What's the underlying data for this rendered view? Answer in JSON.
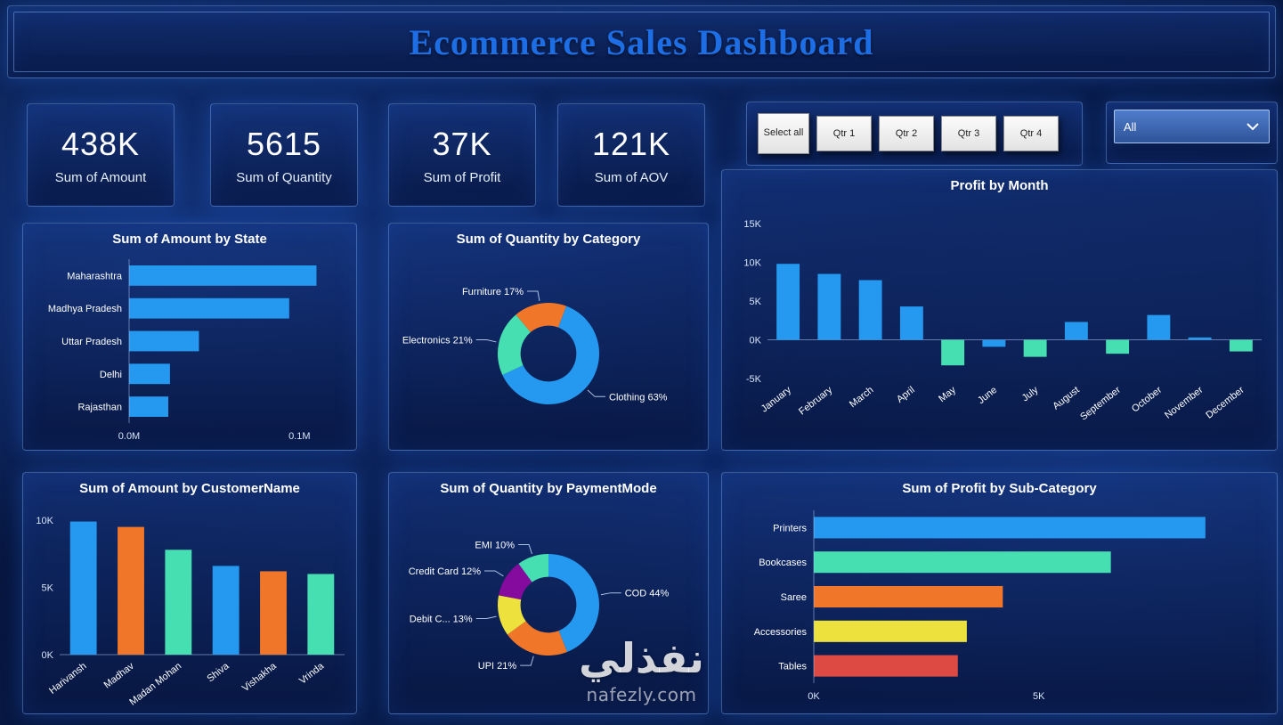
{
  "title": "Ecommerce Sales Dashboard",
  "kpis": [
    {
      "value": "438K",
      "label": "Sum of Amount"
    },
    {
      "value": "5615",
      "label": "Sum of Quantity"
    },
    {
      "value": "37K",
      "label": "Sum of Profit"
    },
    {
      "value": "121K",
      "label": "Sum of AOV"
    }
  ],
  "filters": {
    "quarter_buttons": [
      "Select all",
      "Qtr 1",
      "Qtr 2",
      "Qtr 3",
      "Qtr 4"
    ],
    "dropdown_value": "All"
  },
  "watermark": {
    "arabic": "نفذلي",
    "domain": "nafezly.com"
  },
  "colors": {
    "blue": "#2499ef",
    "orange": "#f0762a",
    "teal": "#46dfb2",
    "yellow": "#ede23d",
    "purple": "#850b9e",
    "red": "#dd4a43",
    "title_blue": "#1d6de4",
    "background": "#081c48"
  },
  "chart_data": [
    {
      "id": "amount_by_state",
      "type": "bar",
      "orientation": "horizontal",
      "title": "Sum of Amount by State",
      "categories": [
        "Maharashtra",
        "Madhya Pradesh",
        "Uttar Pradesh",
        "Delhi",
        "Rajasthan"
      ],
      "values": [
        0.11,
        0.094,
        0.041,
        0.024,
        0.023
      ],
      "unit": "M",
      "xmax": 0.115,
      "xticks": [
        {
          "value": 0.0,
          "label": "0.0M"
        },
        {
          "value": 0.1,
          "label": "0.1M"
        }
      ],
      "bar_color": "#2499ef",
      "legend": "off",
      "grid": "off"
    },
    {
      "id": "quantity_by_category",
      "type": "pie",
      "title": "Sum of Quantity by Category",
      "start_angle": -40,
      "inner_ratio": 0.55,
      "slices": [
        {
          "name": "Furniture",
          "pct": 17,
          "label": "Furniture 17%",
          "value": 17,
          "color": "#f0762a"
        },
        {
          "name": "Clothing",
          "pct": 63,
          "label": "Clothing 63%",
          "value": 63,
          "color": "#2499ef"
        },
        {
          "name": "Electronics",
          "pct": 21,
          "label": "Electronics 21%",
          "value": 21,
          "color": "#46dfb2"
        }
      ]
    },
    {
      "id": "profit_by_month",
      "type": "bar",
      "orientation": "vertical",
      "title": "Profit by Month",
      "categories": [
        "January",
        "February",
        "March",
        "April",
        "May",
        "June",
        "July",
        "August",
        "September",
        "October",
        "November",
        "December"
      ],
      "values": [
        9.8,
        8.5,
        7.7,
        4.3,
        -3.3,
        -0.9,
        -2.2,
        2.3,
        -1.8,
        3.2,
        0.3,
        -1.5
      ],
      "colors": [
        "#2499ef",
        "#2499ef",
        "#2499ef",
        "#2499ef",
        "#46dfb2",
        "#2499ef",
        "#46dfb2",
        "#2499ef",
        "#46dfb2",
        "#2499ef",
        "#2499ef",
        "#46dfb2"
      ],
      "ymin": -5,
      "ymax": 15,
      "yticks": [
        -5,
        0,
        5,
        10,
        15
      ],
      "ytick_suffix": "K",
      "grid": "off"
    },
    {
      "id": "amount_by_customername",
      "type": "bar",
      "orientation": "vertical",
      "title": "Sum of Amount by CustomerName",
      "categories": [
        "Harivansh",
        "Madhav",
        "Madan Mohan",
        "Shiva",
        "Vishakha",
        "Vrinda"
      ],
      "values": [
        9.9,
        9.5,
        7.8,
        6.6,
        6.2,
        6.0
      ],
      "colors": [
        "#2499ef",
        "#f0762a",
        "#46dfb2",
        "#2499ef",
        "#f0762a",
        "#46dfb2"
      ],
      "ymin": 0,
      "ymax": 10.6,
      "yticks": [
        0,
        5,
        10
      ],
      "ytick_suffix": "K",
      "grid": "off"
    },
    {
      "id": "quantity_by_paymentmode",
      "type": "pie",
      "title": "Sum of Quantity by PaymentMode",
      "start_angle": 0,
      "inner_ratio": 0.55,
      "slices": [
        {
          "name": "COD",
          "pct": 44,
          "label": "COD 44%",
          "value": 44,
          "color": "#2499ef"
        },
        {
          "name": "UPI",
          "pct": 21,
          "label": "UPI 21%",
          "value": 21,
          "color": "#f0762a"
        },
        {
          "name": "Debit Card",
          "pct": 13,
          "label": "Debit C... 13%",
          "value": 13,
          "color": "#ede23d"
        },
        {
          "name": "Credit Card",
          "pct": 12,
          "label": "Credit Card 12%",
          "value": 12,
          "color": "#850b9e"
        },
        {
          "name": "EMI",
          "pct": 10,
          "label": "EMI 10%",
          "value": 10,
          "color": "#46dfb2"
        }
      ]
    },
    {
      "id": "profit_by_subcategory",
      "type": "bar",
      "orientation": "horizontal",
      "title": "Sum of Profit by Sub-Category",
      "categories": [
        "Printers",
        "Bookcases",
        "Saree",
        "Accessories",
        "Tables"
      ],
      "values": [
        8.7,
        6.6,
        4.2,
        3.4,
        3.2
      ],
      "colors": [
        "#2499ef",
        "#46dfb2",
        "#f0762a",
        "#ede23d",
        "#dd4a43"
      ],
      "xmax": 9,
      "xticks": [
        {
          "value": 0,
          "label": "0K"
        },
        {
          "value": 5,
          "label": "5K"
        }
      ],
      "grid": "off"
    }
  ]
}
